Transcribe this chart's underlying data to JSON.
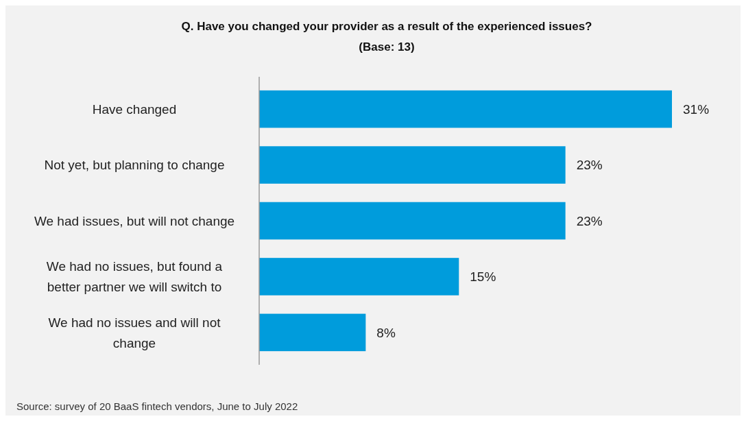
{
  "chart_data": {
    "type": "bar",
    "orientation": "horizontal",
    "title": "Q. Have you changed your provider as a result of the experienced issues?",
    "subtitle": "(Base: 13)",
    "categories": [
      "Have changed",
      "Not yet, but planning to change",
      "We had issues, but will not change",
      "We had no issues, but found a better partner we will switch to",
      "We had no issues and will not change"
    ],
    "values": [
      31,
      23,
      23,
      15,
      8
    ],
    "value_labels": [
      "31%",
      "23%",
      "23%",
      "15%",
      "8%"
    ],
    "color": "#009cdc",
    "annotations": [
      "Source: survey of 20 BaaS fintech vendors, June to July 2022"
    ]
  }
}
